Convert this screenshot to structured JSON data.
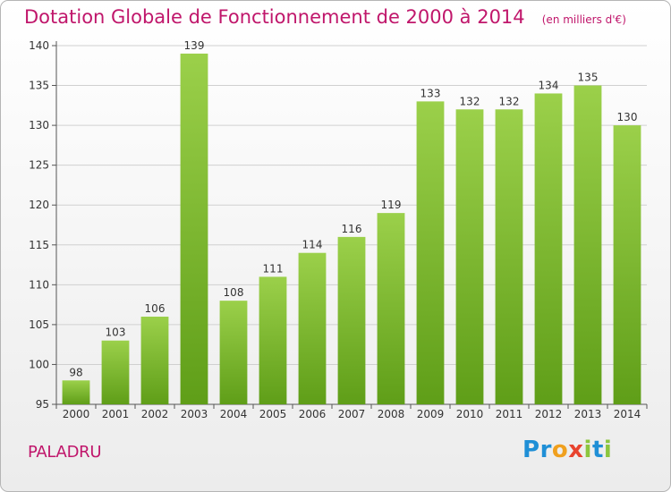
{
  "chart_data": {
    "type": "bar",
    "title": "Dotation Globale de Fonctionnement de 2000 à 2014",
    "subtitle": "(en milliers d'€)",
    "categories": [
      "2000",
      "2001",
      "2002",
      "2003",
      "2004",
      "2005",
      "2006",
      "2007",
      "2008",
      "2009",
      "2010",
      "2011",
      "2012",
      "2013",
      "2014"
    ],
    "values": [
      98,
      103,
      106,
      139,
      108,
      111,
      114,
      116,
      119,
      133,
      132,
      132,
      134,
      135,
      130
    ],
    "ylim": [
      95,
      140
    ],
    "yticks": [
      95,
      100,
      105,
      110,
      115,
      120,
      125,
      130,
      135,
      140
    ],
    "grid": true,
    "colors": {
      "bar_top": "#9bd04a",
      "bar_bottom": "#5f9e18",
      "title": "#c0166b",
      "grid": "#d0d0d0"
    }
  },
  "footer": {
    "town": "PALADRU",
    "logo_letters": [
      {
        "ch": "P",
        "color": "#1f8fd6"
      },
      {
        "ch": "r",
        "color": "#1f8fd6"
      },
      {
        "ch": "o",
        "color": "#f0a01e"
      },
      {
        "ch": "x",
        "color": "#e8432e"
      },
      {
        "ch": "i",
        "color": "#8cc63f"
      },
      {
        "ch": "t",
        "color": "#1f8fd6"
      },
      {
        "ch": "i",
        "color": "#8cc63f"
      }
    ]
  }
}
